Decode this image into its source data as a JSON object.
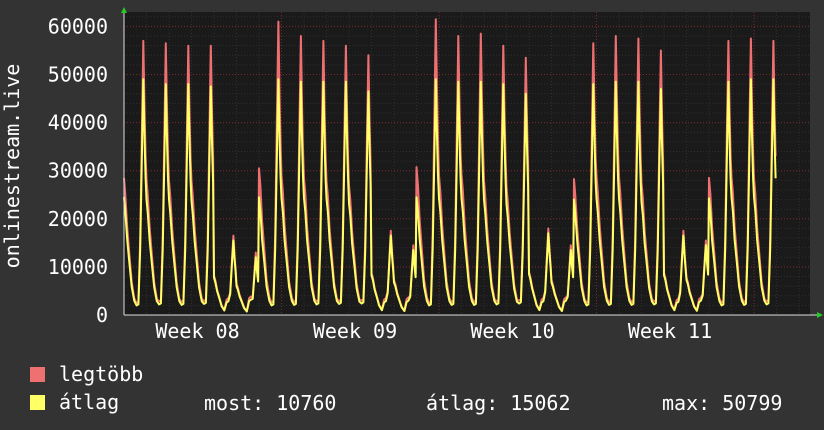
{
  "chart_data": {
    "type": "line",
    "title": "",
    "ylabel": "onlinestream.live",
    "xlabel": "",
    "ylim": [
      0,
      63000
    ],
    "y_ticks": [
      0,
      10000,
      20000,
      30000,
      40000,
      50000,
      60000
    ],
    "y_tick_labels": [
      "0",
      "10000",
      "20000",
      "30000",
      "40000",
      "50000",
      "60000"
    ],
    "x_tick_labels": [
      "Week 08",
      "Week 09",
      "Week 10",
      "Week 11"
    ],
    "grid": true,
    "x_unit": "day index (0 = first day shown)",
    "series": [
      {
        "name": "legtöbb",
        "color": "#ee7070",
        "daily_peaks": [
          57000,
          56500,
          56000,
          56000,
          16500,
          13000,
          61000,
          58000,
          57000,
          56000,
          54000,
          17500,
          14500,
          61500,
          58000,
          58500,
          56000,
          53500,
          18000,
          14500,
          56500,
          58000,
          57500,
          55000,
          17500,
          15500,
          57000,
          57500,
          57000
        ],
        "daily_troughs": [
          2500,
          2800,
          2700,
          2900,
          3200,
          3500,
          2600,
          2700,
          2800,
          2900,
          3000,
          3200,
          3300,
          2500,
          2700,
          2700,
          2800,
          3000,
          3200,
          3300,
          2600,
          2700,
          2700,
          2800,
          3100,
          3300,
          2600,
          2700,
          2800
        ]
      },
      {
        "name": "átlag",
        "color": "#ffff66",
        "daily_peaks": [
          49000,
          48000,
          48000,
          47500,
          15500,
          12000,
          49000,
          48500,
          48500,
          48500,
          46500,
          16500,
          13500,
          49000,
          48500,
          48500,
          48000,
          46000,
          17000,
          13500,
          48000,
          48500,
          48500,
          47000,
          16500,
          14500,
          48500,
          49000,
          49000
        ],
        "daily_troughs": [
          2000,
          2200,
          2100,
          2300,
          2600,
          2900,
          2000,
          2100,
          2200,
          2300,
          2400,
          2600,
          2700,
          2000,
          2100,
          2100,
          2200,
          2400,
          2600,
          2700,
          2000,
          2100,
          2100,
          2200,
          2500,
          2700,
          2000,
          2100,
          2200
        ]
      }
    ]
  },
  "legend": {
    "max_label": "legtöbb",
    "max_color": "#ee7070",
    "avg_label": "átlag",
    "avg_color": "#ffff66"
  },
  "stats": {
    "current": "most: 10760",
    "average": "átlag: 15062",
    "maximum": "max: 50799"
  }
}
